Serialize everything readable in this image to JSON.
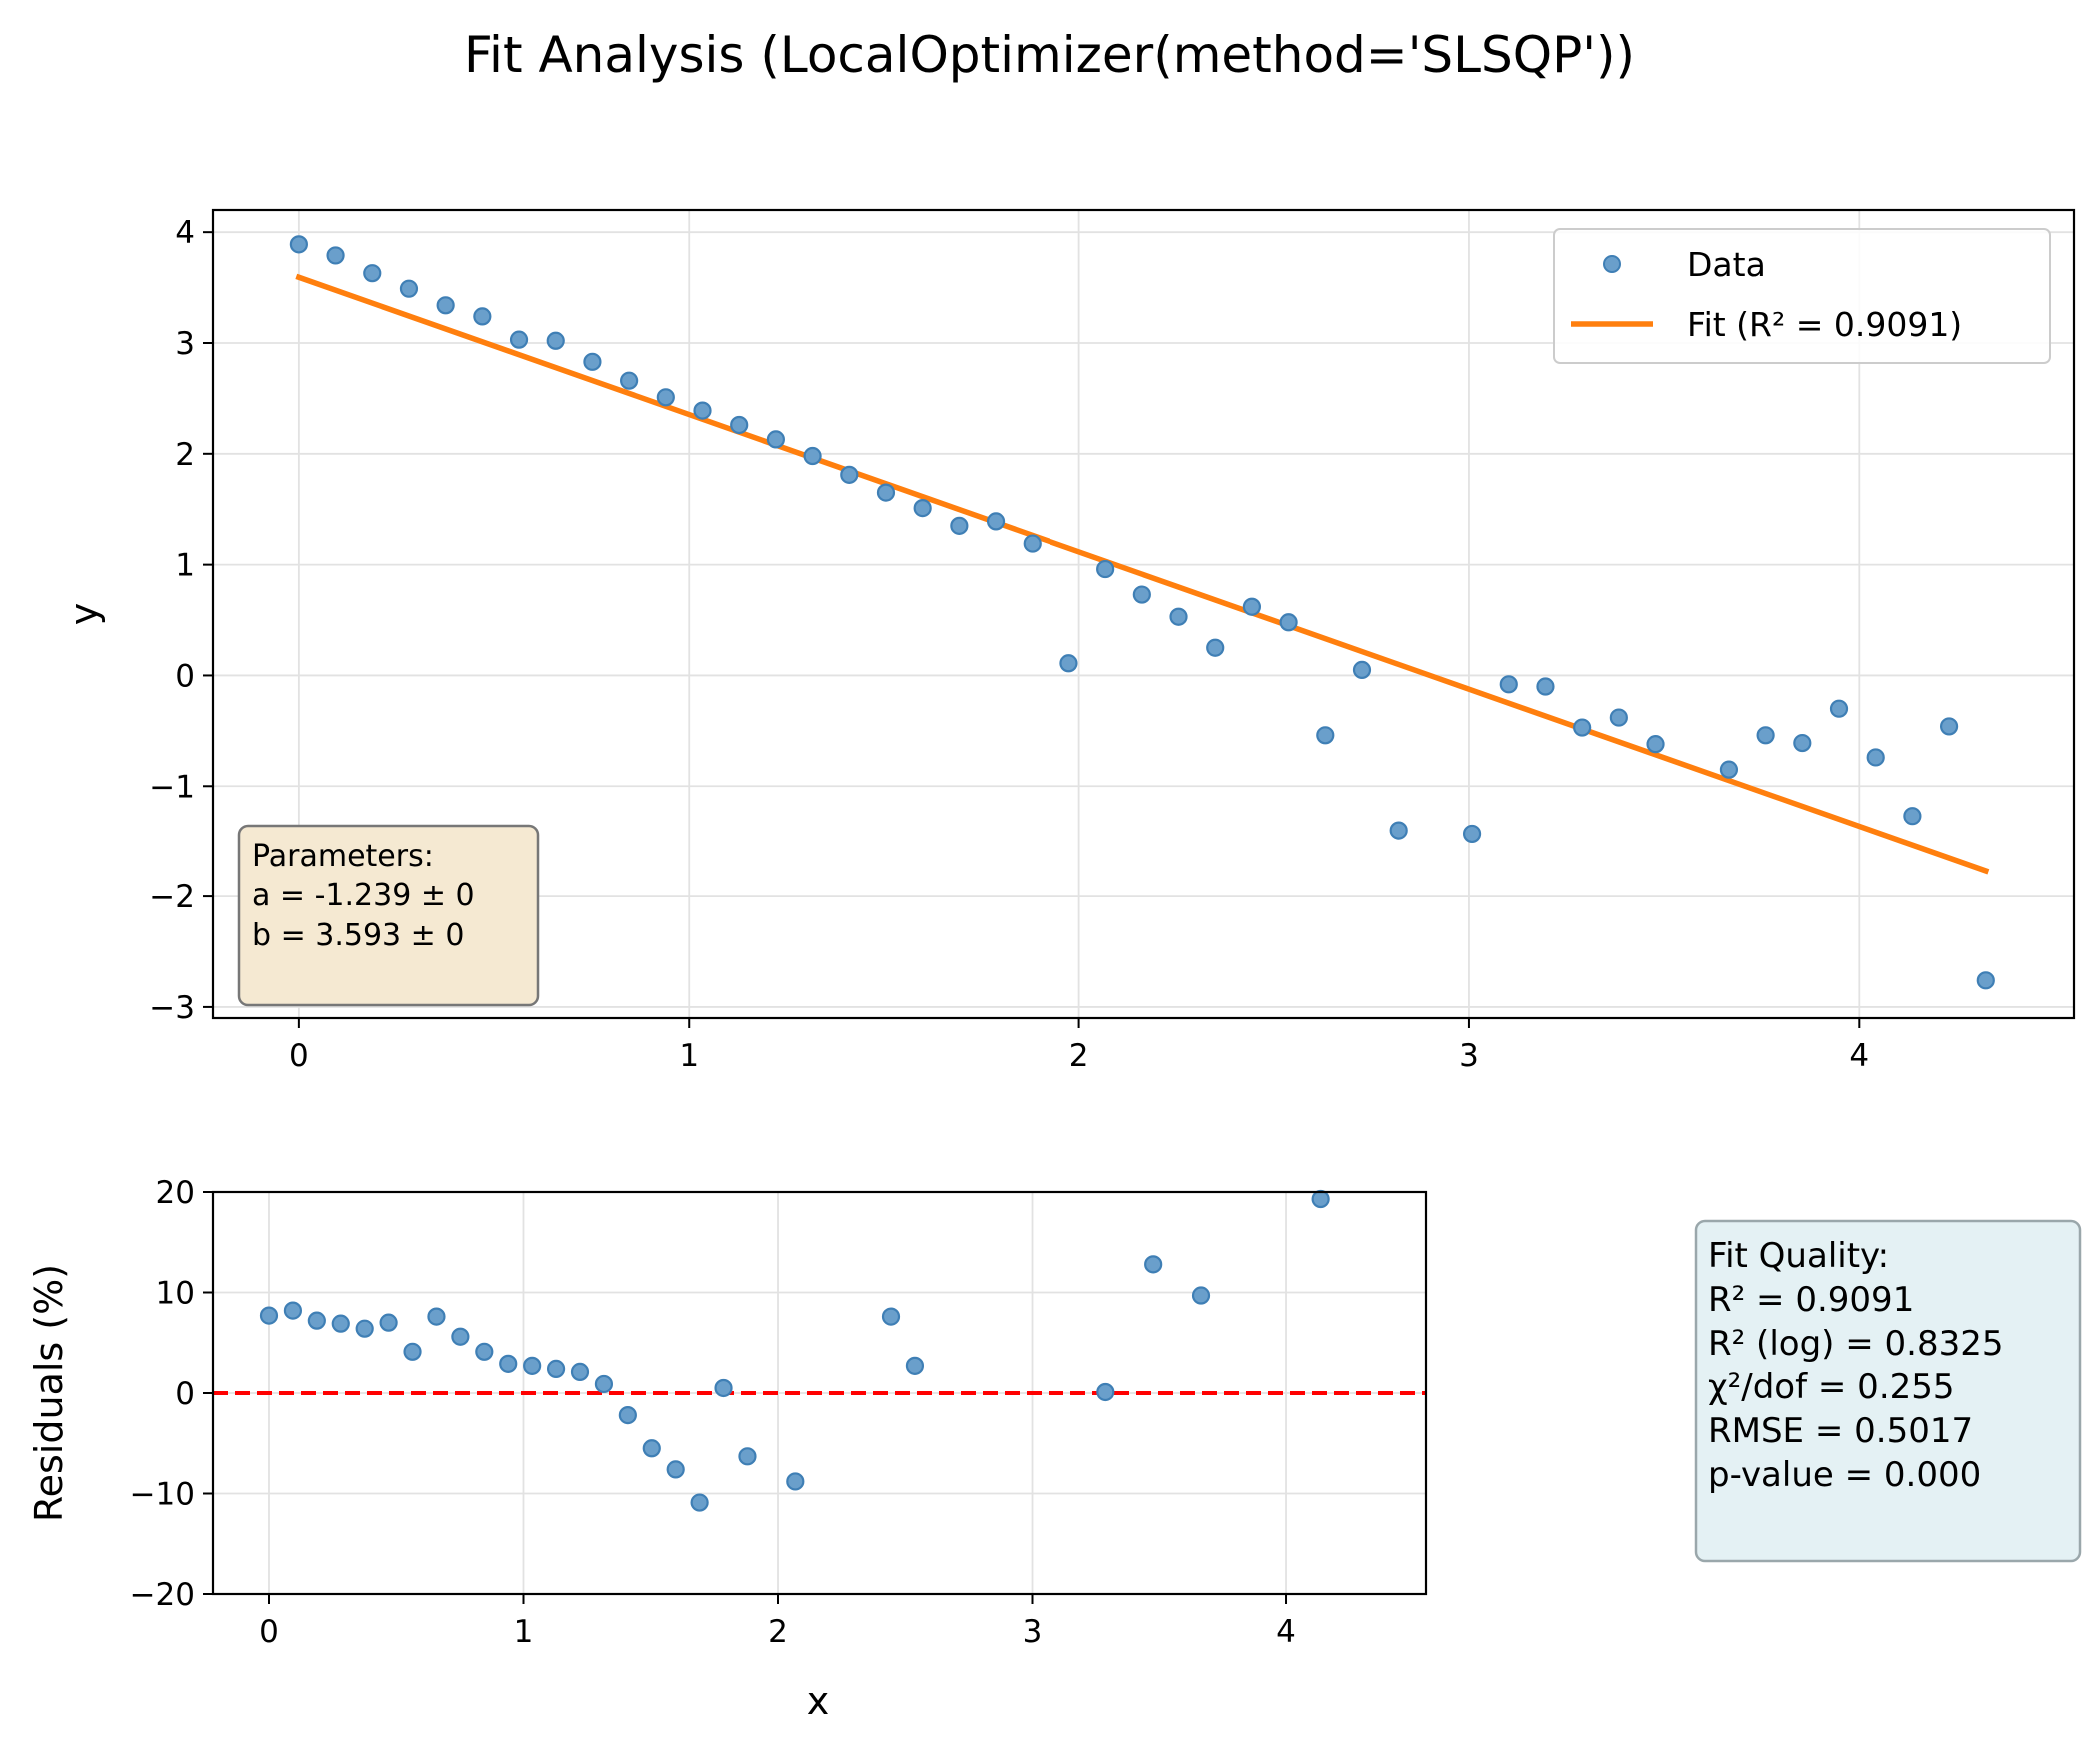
{
  "chart_data": [
    {
      "type": "scatter",
      "title": "Fit Analysis (LocalOptimizer(method='SLSQP'))",
      "xlabel": "",
      "ylabel": "y",
      "xlim": [
        -0.22,
        4.55
      ],
      "ylim": [
        -3.1,
        4.2
      ],
      "xticks": [
        0,
        1,
        2,
        3,
        4
      ],
      "yticks": [
        4,
        3,
        2,
        1,
        0,
        -1,
        -2,
        -3
      ],
      "grid": true,
      "legend_position": "top-right",
      "series": [
        {
          "name": "Data",
          "kind": "scatter",
          "color": "#1f77b4",
          "x": [
            0.0,
            0.094,
            0.188,
            0.282,
            0.376,
            0.47,
            0.564,
            0.658,
            0.752,
            0.846,
            0.94,
            1.034,
            1.128,
            1.222,
            1.316,
            1.41,
            1.504,
            1.598,
            1.692,
            1.786,
            1.88,
            1.974,
            2.068,
            2.162,
            2.256,
            2.35,
            2.444,
            2.538,
            2.632,
            2.726,
            2.82,
            3.008,
            3.102,
            3.196,
            3.29,
            3.384,
            3.478,
            3.666,
            3.76,
            3.854,
            3.948,
            4.042,
            4.136,
            4.23,
            4.324
          ],
          "y": [
            3.89,
            3.79,
            3.63,
            3.49,
            3.34,
            3.24,
            3.03,
            3.02,
            2.83,
            2.66,
            2.51,
            2.39,
            2.26,
            2.13,
            1.98,
            1.81,
            1.65,
            1.51,
            1.35,
            1.39,
            1.19,
            0.11,
            0.96,
            0.73,
            0.53,
            0.25,
            0.62,
            0.48,
            -0.54,
            0.05,
            -1.4,
            -1.43,
            -0.08,
            -0.1,
            -0.47,
            -0.38,
            -0.62,
            -0.85,
            -0.54,
            -0.61,
            -0.3,
            -0.74,
            -1.27,
            -0.46,
            -2.76
          ]
        },
        {
          "name": "Fit (R² = 0.9091)",
          "kind": "line",
          "color": "#ff7f0e",
          "x": [
            0.0,
            4.324
          ],
          "y": [
            3.593,
            -1.764
          ]
        }
      ],
      "annotation": {
        "lines": [
          "Parameters:",
          "a = -1.239 ± 0",
          "b = 3.593 ± 0"
        ],
        "background": "#f5e9d2"
      }
    },
    {
      "type": "scatter",
      "title": "",
      "xlabel": "x",
      "ylabel": "Residuals (%)",
      "xlim": [
        -0.22,
        4.55
      ],
      "ylim": [
        -20,
        20
      ],
      "xticks": [
        0,
        1,
        2,
        3,
        4
      ],
      "yticks": [
        20,
        10,
        0,
        -10,
        -20
      ],
      "grid": true,
      "reference_line": {
        "y": 0,
        "color": "#ff0000",
        "style": "dashed"
      },
      "series": [
        {
          "name": "",
          "kind": "scatter",
          "color": "#1f77b4",
          "x": [
            0.0,
            0.094,
            0.188,
            0.282,
            0.376,
            0.47,
            0.564,
            0.658,
            0.752,
            0.846,
            0.94,
            1.034,
            1.128,
            1.222,
            1.316,
            1.41,
            1.504,
            1.598,
            1.692,
            1.786,
            1.88,
            2.068,
            2.444,
            2.538,
            3.29,
            3.478,
            3.666,
            4.136
          ],
          "y": [
            7.7,
            8.2,
            7.2,
            6.9,
            6.4,
            7.0,
            4.1,
            7.6,
            5.6,
            4.1,
            2.9,
            2.7,
            2.4,
            2.1,
            0.9,
            -2.2,
            -5.5,
            -7.6,
            -10.9,
            0.5,
            -6.3,
            -8.8,
            7.6,
            2.7,
            0.1,
            12.8,
            9.7,
            19.3
          ]
        }
      ]
    }
  ],
  "fit_quality": {
    "lines": [
      "Fit Quality:",
      "R² = 0.9091",
      "R² (log) = 0.8325",
      "χ²/dof = 0.255",
      "RMSE = 0.5017",
      "p-value = 0.000"
    ],
    "background": "#e4f1f4"
  }
}
